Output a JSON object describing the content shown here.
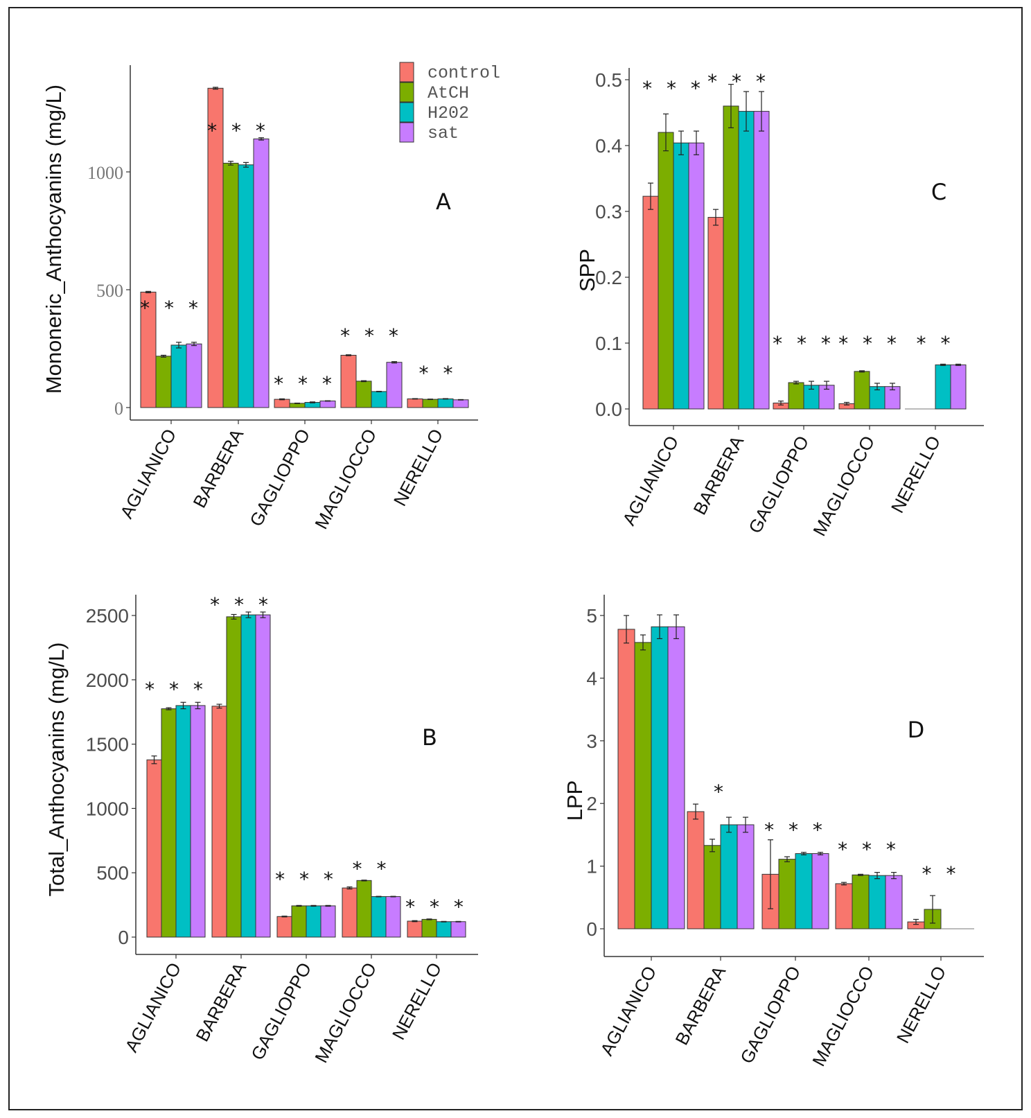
{
  "colors": {
    "control": "#F8766D",
    "AtCH": "#7CAE00",
    "H2O2": "#00BFC4",
    "sat": "#C77CFF",
    "axis": "#333333"
  },
  "legend": {
    "entries": [
      {
        "name": "control",
        "label": "control",
        "color": "#F8766D"
      },
      {
        "name": "AtCH",
        "label": "AtCH",
        "color": "#7CAE00"
      },
      {
        "name": "H2O2",
        "label": "H202",
        "color": "#00BFC4"
      },
      {
        "name": "sat",
        "label": "sat",
        "color": "#C77CFF"
      }
    ]
  },
  "chart_data": [
    {
      "panel": "A",
      "type": "bar",
      "ylabel": "Mononeric_Anthocyanins (mg/L)",
      "ylim": [
        0,
        1400
      ],
      "yticks": [
        0,
        500,
        1000
      ],
      "ytick_labels": [
        "0",
        "500",
        "1000"
      ],
      "categories": [
        "AGLIANICO",
        "BARBERA",
        "GAGLIOPPO",
        "MAGLIOCCO",
        "NERELLO"
      ],
      "series": [
        {
          "name": "control",
          "values": [
            490,
            1355,
            35,
            222,
            37
          ],
          "errors": [
            3,
            4,
            2,
            2,
            1
          ]
        },
        {
          "name": "AtCH",
          "values": [
            218,
            1037,
            18,
            112,
            35
          ],
          "errors": [
            4,
            8,
            1,
            2,
            1
          ]
        },
        {
          "name": "H2O2",
          "values": [
            265,
            1030,
            22,
            68,
            37
          ],
          "errors": [
            12,
            10,
            2,
            1,
            1
          ]
        },
        {
          "name": "sat",
          "values": [
            270,
            1140,
            28,
            192,
            33
          ],
          "errors": [
            7,
            5,
            1,
            3,
            1
          ]
        }
      ],
      "significance": [
        "* * *",
        "* * *",
        "* * *",
        "* * *",
        "*    *"
      ]
    },
    {
      "panel": "C",
      "type": "bar",
      "ylabel": "SPP",
      "ylim": [
        0,
        0.5
      ],
      "yticks": [
        0,
        0.1,
        0.2,
        0.3,
        0.4,
        0.5
      ],
      "ytick_labels": [
        "0.0",
        "0.1",
        "0.2",
        "0.3",
        "0.4",
        "0.5"
      ],
      "categories": [
        "AGLIANICO",
        "BARBERA",
        "GAGLIOPPO",
        "MAGLIOCCO",
        "NERELLO"
      ],
      "series": [
        {
          "name": "control",
          "values": [
            0.323,
            0.291,
            0.009,
            0.008,
            0.0
          ],
          "errors": [
            0.02,
            0.012,
            0.003,
            0.002,
            0
          ]
        },
        {
          "name": "AtCH",
          "values": [
            0.42,
            0.46,
            0.04,
            0.057,
            0.0
          ],
          "errors": [
            0.028,
            0.033,
            0.002,
            0.001,
            0
          ]
        },
        {
          "name": "H2O2",
          "values": [
            0.404,
            0.452,
            0.036,
            0.034,
            0.067
          ],
          "errors": [
            0.018,
            0.03,
            0.006,
            0.005,
            0.001
          ]
        },
        {
          "name": "sat",
          "values": [
            0.404,
            0.452,
            0.036,
            0.034,
            0.067
          ],
          "errors": [
            0.018,
            0.03,
            0.006,
            0.005,
            0.001
          ]
        }
      ],
      "significance": [
        "* * *",
        "* * *",
        "* * *",
        "* * *",
        "* *"
      ]
    },
    {
      "panel": "B",
      "type": "bar",
      "ylabel": "Total_Anthocyanins (mg/L)",
      "ylim": [
        0,
        2500
      ],
      "yticks": [
        0,
        500,
        1000,
        1500,
        2000,
        2500
      ],
      "ytick_labels": [
        "0",
        "500",
        "1000",
        "1500",
        "2000",
        "2500"
      ],
      "categories": [
        "AGLIANICO",
        "BARBERA",
        "GAGLIOPPO",
        "MAGLIOCCO",
        "NERELLO"
      ],
      "series": [
        {
          "name": "control",
          "values": [
            1378,
            1795,
            160,
            382,
            124
          ],
          "errors": [
            30,
            15,
            3,
            8,
            4
          ]
        },
        {
          "name": "AtCH",
          "values": [
            1775,
            2490,
            243,
            440,
            138
          ],
          "errors": [
            8,
            18,
            3,
            3,
            3
          ]
        },
        {
          "name": "H2O2",
          "values": [
            1800,
            2505,
            243,
            315,
            120
          ],
          "errors": [
            25,
            22,
            3,
            2,
            2
          ]
        },
        {
          "name": "sat",
          "values": [
            1800,
            2505,
            243,
            315,
            120
          ],
          "errors": [
            25,
            22,
            3,
            2,
            2
          ]
        }
      ],
      "significance": [
        "* * *",
        "* * *",
        "* * *",
        "* *",
        "* * *"
      ]
    },
    {
      "panel": "D",
      "type": "bar",
      "ylabel": "LPP",
      "ylim": [
        0,
        5
      ],
      "yticks": [
        0,
        1,
        2,
        3,
        4,
        5
      ],
      "ytick_labels": [
        "0",
        "1",
        "2",
        "3",
        "4",
        "5"
      ],
      "categories": [
        "AGLIANICO",
        "BARBERA",
        "GAGLIOPPO",
        "MAGLIOCCO",
        "NERELLO"
      ],
      "series": [
        {
          "name": "control",
          "values": [
            4.78,
            1.87,
            0.87,
            0.72,
            0.11
          ],
          "errors": [
            0.22,
            0.12,
            0.55,
            0.02,
            0.04
          ]
        },
        {
          "name": "AtCH",
          "values": [
            4.57,
            1.33,
            1.11,
            0.86,
            0.31
          ],
          "errors": [
            0.12,
            0.1,
            0.04,
            0.01,
            0.22
          ]
        },
        {
          "name": "H2O2",
          "values": [
            4.82,
            1.66,
            1.2,
            0.85,
            0.0
          ],
          "errors": [
            0.19,
            0.12,
            0.02,
            0.05,
            0
          ]
        },
        {
          "name": "sat",
          "values": [
            4.82,
            1.66,
            1.2,
            0.85,
            0.0
          ],
          "errors": [
            0.19,
            0.12,
            0.02,
            0.05,
            0
          ]
        }
      ],
      "significance": [
        "",
        "*",
        "* * *",
        "* * *",
        "* *"
      ]
    }
  ]
}
